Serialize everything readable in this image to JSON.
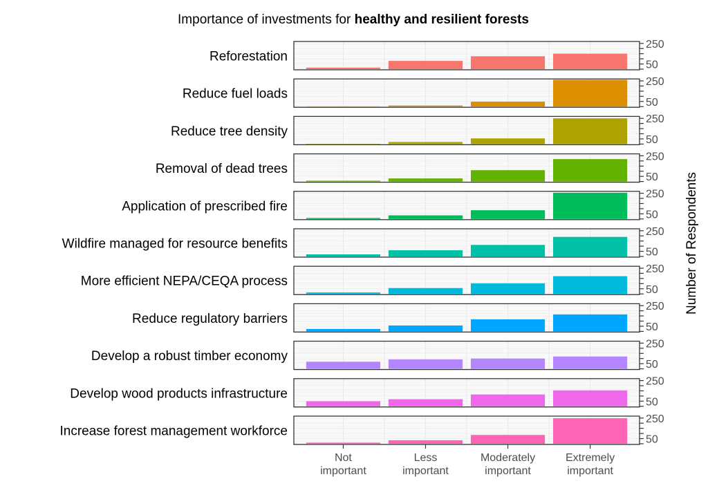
{
  "chart_data": {
    "type": "bar",
    "title": "Importance of investments for",
    "title_bold": "healthy and resilient forests",
    "ylabel": "Number of Respondents",
    "xlabel": "",
    "categories": [
      "Not important",
      "Less important",
      "Moderately important",
      "Extremely important"
    ],
    "category_lines": [
      [
        "Not",
        "important"
      ],
      [
        "Less",
        "important"
      ],
      [
        "Moderately",
        "important"
      ],
      [
        "Extremely",
        "important"
      ]
    ],
    "y_tick_labels": [
      "250",
      "50"
    ],
    "ylim": [
      0,
      262
    ],
    "grid": true,
    "facets": [
      {
        "name": "Reforestation",
        "color": "#F8766D",
        "values": [
          15,
          80,
          125,
          150
        ]
      },
      {
        "name": "Reduce fuel loads",
        "color": "#DB8E00",
        "values": [
          2,
          10,
          48,
          260
        ]
      },
      {
        "name": "Reduce tree density",
        "color": "#AEA200",
        "values": [
          3,
          20,
          55,
          250
        ]
      },
      {
        "name": "Removal of dead trees",
        "color": "#64B200",
        "values": [
          8,
          30,
          110,
          218
        ]
      },
      {
        "name": "Application of prescribed fire",
        "color": "#00BD5C",
        "values": [
          10,
          35,
          85,
          255
        ]
      },
      {
        "name": "Wildfire managed for resource benefits",
        "color": "#00C1A7",
        "values": [
          20,
          60,
          112,
          190
        ]
      },
      {
        "name": "More efficient NEPA/CEQA process",
        "color": "#00BADE",
        "values": [
          14,
          57,
          103,
          172
        ]
      },
      {
        "name": "Reduce regulatory barriers",
        "color": "#00A6FF",
        "values": [
          23,
          57,
          117,
          165
        ]
      },
      {
        "name": "Develop a robust timber economy",
        "color": "#B385FF",
        "values": [
          69,
          92,
          100,
          120
        ]
      },
      {
        "name": "Develop wood products infrastructure",
        "color": "#EF67EB",
        "values": [
          49,
          69,
          115,
          155
        ]
      },
      {
        "name": "Increase forest management workforce",
        "color": "#FF63B6",
        "values": [
          11,
          34,
          86,
          248
        ]
      }
    ]
  }
}
